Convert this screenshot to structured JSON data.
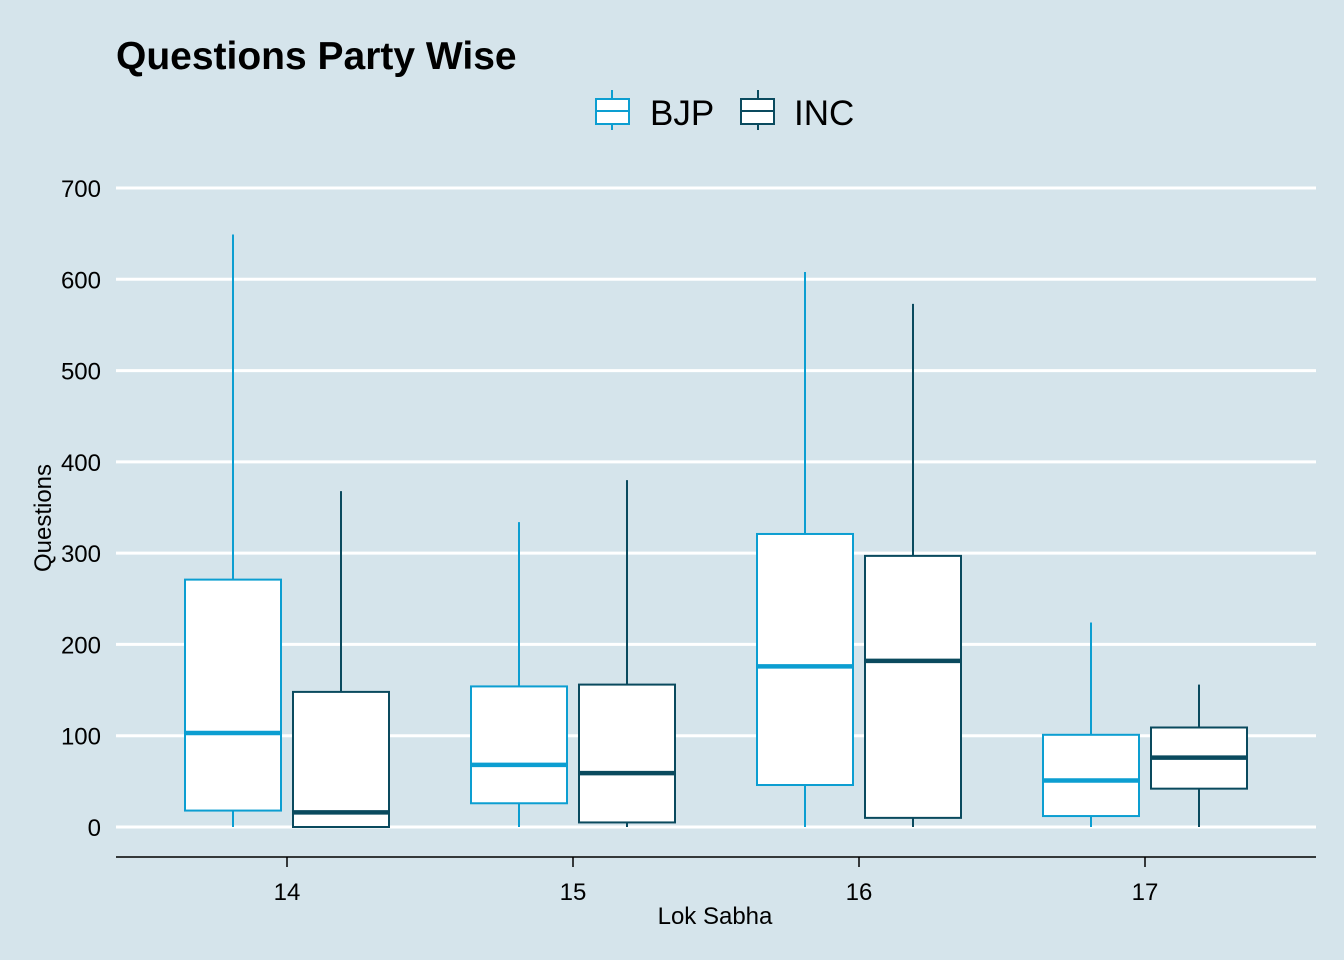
{
  "chart_data": {
    "type": "boxplot",
    "title": "Questions Party Wise",
    "xlabel": "Lok Sabha",
    "ylabel": "Questions",
    "ylim": [
      0,
      700
    ],
    "y_ticks": [
      0,
      100,
      200,
      300,
      400,
      500,
      600,
      700
    ],
    "categories": [
      "14",
      "15",
      "16",
      "17"
    ],
    "grid": "horizontal",
    "legend_position": "top",
    "series": [
      {
        "name": "BJP",
        "color": "#0c9ed1",
        "boxes": [
          {
            "category": "14",
            "whisker_low": 0,
            "q1": 18,
            "median": 103,
            "q3": 271,
            "whisker_high": 649
          },
          {
            "category": "15",
            "whisker_low": 0,
            "q1": 26,
            "median": 68,
            "q3": 154,
            "whisker_high": 334
          },
          {
            "category": "16",
            "whisker_low": 0,
            "q1": 46,
            "median": 176,
            "q3": 321,
            "whisker_high": 608
          },
          {
            "category": "17",
            "whisker_low": 0,
            "q1": 12,
            "median": 51,
            "q3": 101,
            "whisker_high": 224
          }
        ]
      },
      {
        "name": "INC",
        "color": "#0a4a5e",
        "boxes": [
          {
            "category": "14",
            "whisker_low": 0,
            "q1": 0,
            "median": 16,
            "q3": 148,
            "whisker_high": 368
          },
          {
            "category": "15",
            "whisker_low": 0,
            "q1": 5,
            "median": 59,
            "q3": 156,
            "whisker_high": 380
          },
          {
            "category": "16",
            "whisker_low": 0,
            "q1": 10,
            "median": 182,
            "q3": 297,
            "whisker_high": 573
          },
          {
            "category": "17",
            "whisker_low": 0,
            "q1": 42,
            "median": 76,
            "q3": 109,
            "whisker_high": 156
          }
        ]
      }
    ]
  }
}
